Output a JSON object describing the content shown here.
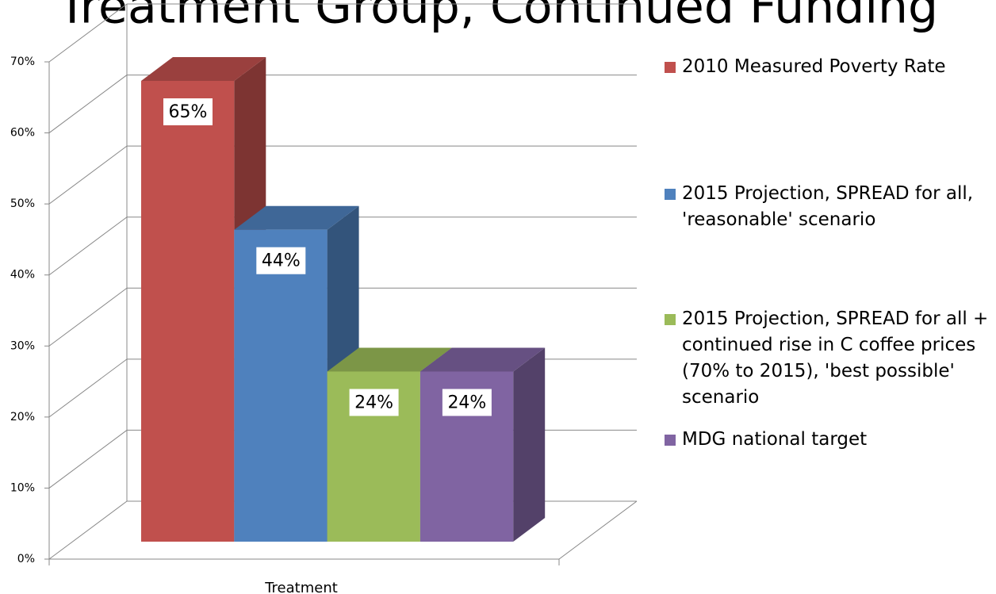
{
  "chart_data": {
    "type": "bar3d",
    "title": "Treatment Group, Continued Funding",
    "categories": [
      "Treatment"
    ],
    "series": [
      {
        "name": "2010 Measured Poverty Rate",
        "color": "#c0504d",
        "values": [
          65
        ],
        "value_labels": [
          "65%"
        ]
      },
      {
        "name": "2015 Projection, SPREAD for all, 'reasonable' scenario",
        "color": "#4f81bd",
        "values": [
          44
        ],
        "value_labels": [
          "44%"
        ]
      },
      {
        "name": "2015 Projection, SPREAD for all + continued rise in C coffee prices (70% to 2015), 'best possible' scenario",
        "color": "#9bbb59",
        "values": [
          24
        ],
        "value_labels": [
          "24%"
        ]
      },
      {
        "name": "MDG national target",
        "color": "#8064a2",
        "values": [
          24
        ],
        "value_labels": [
          "24%"
        ]
      }
    ],
    "ylim": [
      0,
      70
    ],
    "yticks": [
      {
        "value": 0,
        "label": "0%"
      },
      {
        "value": 10,
        "label": "10%"
      },
      {
        "value": 20,
        "label": "20%"
      },
      {
        "value": 30,
        "label": "30%"
      },
      {
        "value": 40,
        "label": "40%"
      },
      {
        "value": 50,
        "label": "50%"
      },
      {
        "value": 60,
        "label": "60%"
      },
      {
        "value": 70,
        "label": "70%"
      }
    ],
    "grid": true
  }
}
